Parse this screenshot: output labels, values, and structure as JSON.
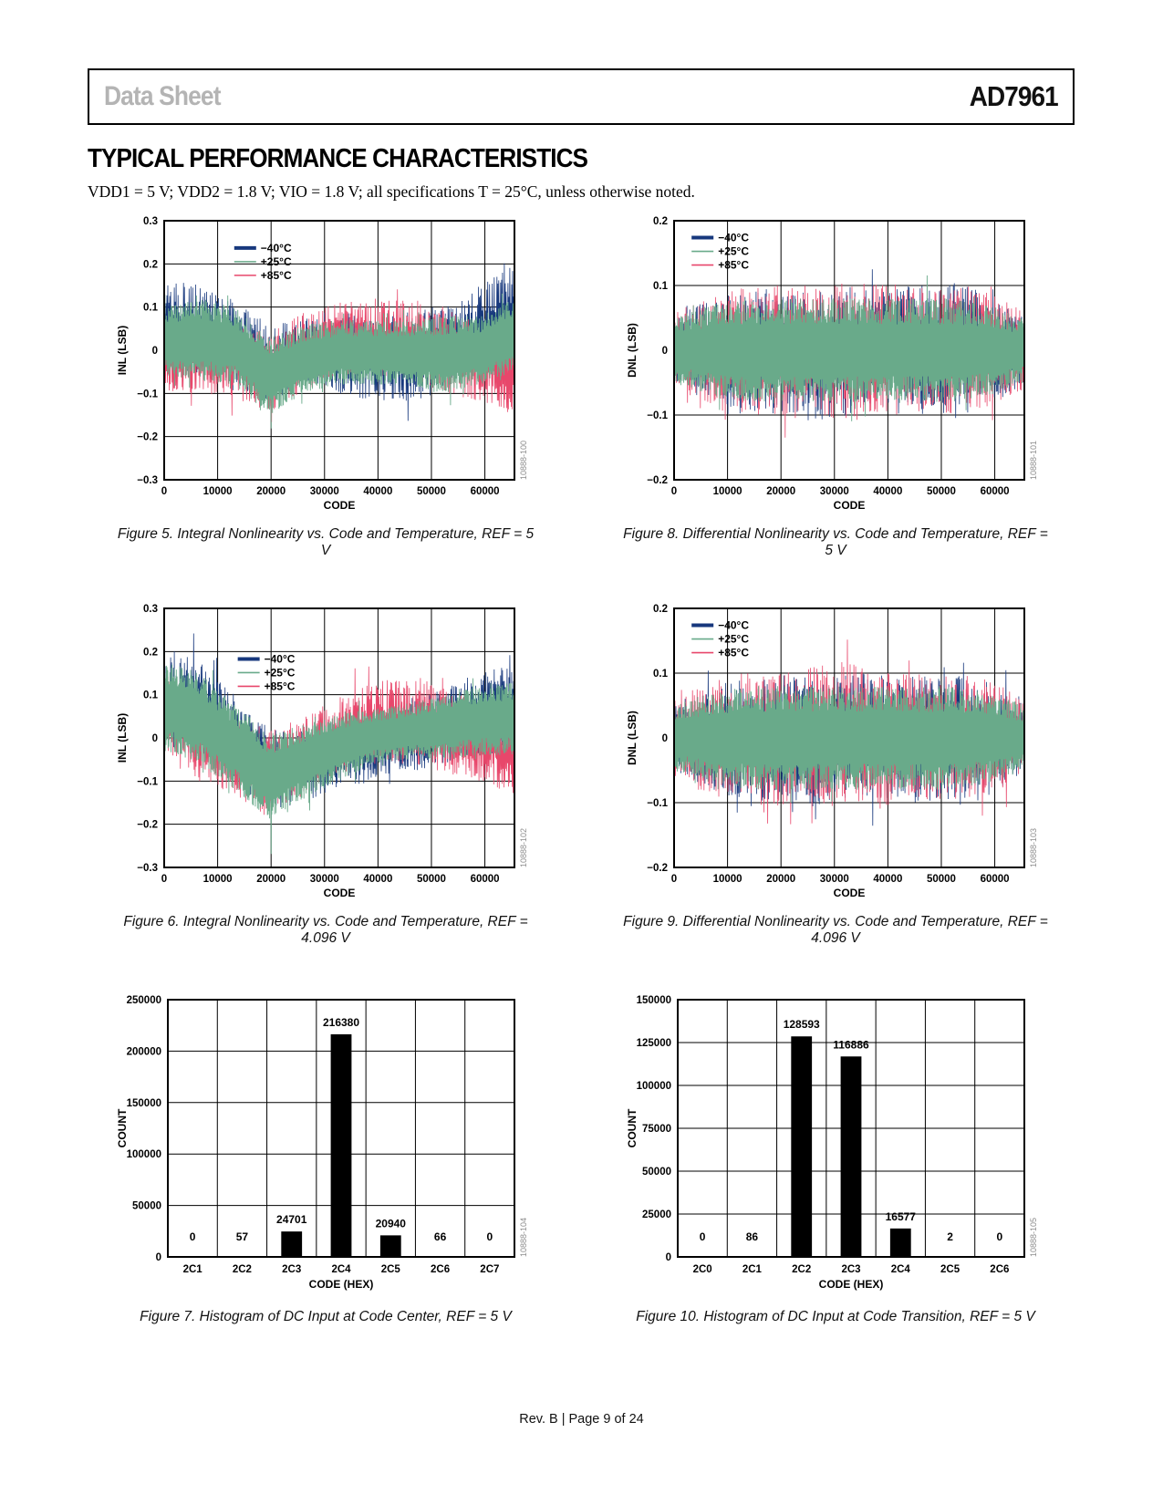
{
  "page": {
    "header_left": "Data Sheet",
    "header_right": "AD7961",
    "title": "TYPICAL PERFORMANCE CHARACTERISTICS",
    "subtitle": "VDD1 = 5 V; VDD2 = 1.8 V; VIO = 1.8 V; all specifications T = 25°C, unless otherwise noted.",
    "footer": "Rev. B | Page 9 of 24"
  },
  "colors": {
    "navy": "#17387d",
    "green": "#69aa8a",
    "crimson": "#e8476b",
    "bar": "#000000",
    "watermark": "#8c8c8c",
    "grid": "#000000"
  },
  "chart_data": [
    {
      "id": "inl-5v",
      "type": "line",
      "title": "",
      "caption": "Figure 5. Integral Nonlinearity vs. Code and Temperature, REF = 5 V",
      "xlabel": "CODE",
      "ylabel": "INL (LSB)",
      "xlim": [
        0,
        65536
      ],
      "ylim": [
        -0.3,
        0.3
      ],
      "xticks": [
        0,
        10000,
        20000,
        30000,
        40000,
        50000,
        60000
      ],
      "xtick_labels": [
        "0",
        "10000",
        "20000",
        "30000",
        "40000",
        "50000",
        "60000"
      ],
      "yticks": [
        -0.3,
        -0.2,
        -0.1,
        0,
        0.1,
        0.2,
        0.3
      ],
      "ytick_labels": [
        "−0.3",
        "−0.2",
        "−0.1",
        "0",
        "0.1",
        "0.2",
        "0.3"
      ],
      "grid": true,
      "legend_position": "inside-top-left-offset",
      "legend_xy": [
        0.2,
        0.07
      ],
      "watermark": "10888-100",
      "series": [
        {
          "name": "−40°C",
          "color": "navy",
          "seed": 11,
          "line_width": 0.8,
          "upper": [
            0.17,
            0.15,
            0.12,
            0.05,
            0.08,
            0.08,
            0.08,
            0.09,
            0.1,
            0.15,
            0.2
          ],
          "lower": [
            -0.05,
            -0.06,
            -0.08,
            -0.12,
            -0.08,
            -0.1,
            -0.12,
            -0.13,
            -0.1,
            -0.06,
            -0.02
          ]
        },
        {
          "name": "+85°C",
          "color": "crimson",
          "seed": 13,
          "line_width": 0.8,
          "upper": [
            0.05,
            0.06,
            0.07,
            0.04,
            0.09,
            0.11,
            0.12,
            0.12,
            0.1,
            0.06,
            0.05
          ],
          "lower": [
            -0.1,
            -0.1,
            -0.11,
            -0.15,
            -0.1,
            -0.06,
            -0.06,
            -0.06,
            -0.1,
            -0.12,
            -0.15
          ]
        },
        {
          "name": "+25°C",
          "color": "green",
          "seed": 12,
          "line_width": 0.9,
          "upper": [
            0.1,
            0.12,
            0.1,
            0.03,
            0.06,
            0.07,
            0.07,
            0.07,
            0.08,
            0.08,
            0.12
          ],
          "lower": [
            -0.06,
            -0.07,
            -0.08,
            -0.15,
            -0.1,
            -0.08,
            -0.08,
            -0.08,
            -0.1,
            -0.08,
            -0.05
          ]
        }
      ],
      "legend_order": [
        "−40°C",
        "+25°C",
        "+85°C"
      ]
    },
    {
      "id": "dnl-5v",
      "type": "line",
      "title": "",
      "caption": "Figure 8. Differential Nonlinearity vs. Code and Temperature, REF = 5 V",
      "xlabel": "CODE",
      "ylabel": "DNL (LSB)",
      "xlim": [
        0,
        65536
      ],
      "ylim": [
        -0.2,
        0.2
      ],
      "xticks": [
        0,
        10000,
        20000,
        30000,
        40000,
        50000,
        60000
      ],
      "xtick_labels": [
        "0",
        "10000",
        "20000",
        "30000",
        "40000",
        "50000",
        "60000"
      ],
      "yticks": [
        -0.2,
        -0.1,
        0,
        0.1,
        0.2
      ],
      "ytick_labels": [
        "−0.2",
        "−0.1",
        "0",
        "0.1",
        "0.2"
      ],
      "grid": true,
      "legend_position": "inside-top-left",
      "legend_xy": [
        0.05,
        0.03
      ],
      "watermark": "10888-101",
      "series": [
        {
          "name": "−40°C",
          "color": "navy",
          "seed": 21,
          "line_width": 0.8,
          "upper": [
            0.05,
            0.08,
            0.09,
            0.1,
            0.09,
            0.1,
            0.1,
            0.1,
            0.11,
            0.09,
            0.05
          ],
          "lower": [
            -0.05,
            -0.08,
            -0.1,
            -0.1,
            -0.11,
            -0.1,
            -0.1,
            -0.1,
            -0.1,
            -0.09,
            -0.05
          ]
        },
        {
          "name": "+85°C",
          "color": "crimson",
          "seed": 23,
          "line_width": 0.8,
          "upper": [
            0.06,
            0.08,
            0.1,
            0.1,
            0.1,
            0.11,
            0.1,
            0.1,
            0.1,
            0.09,
            0.06
          ],
          "lower": [
            -0.06,
            -0.09,
            -0.1,
            -0.11,
            -0.1,
            -0.11,
            -0.1,
            -0.1,
            -0.1,
            -0.09,
            -0.06
          ]
        },
        {
          "name": "+25°C",
          "color": "green",
          "seed": 22,
          "line_width": 0.9,
          "upper": [
            0.05,
            0.07,
            0.08,
            0.08,
            0.08,
            0.08,
            0.08,
            0.08,
            0.08,
            0.07,
            0.05
          ],
          "lower": [
            -0.05,
            -0.07,
            -0.08,
            -0.08,
            -0.08,
            -0.08,
            -0.08,
            -0.08,
            -0.08,
            -0.07,
            -0.05
          ]
        }
      ],
      "legend_order": [
        "−40°C",
        "+25°C",
        "+85°C"
      ]
    },
    {
      "id": "inl-4v096",
      "type": "line",
      "title": "",
      "caption": "Figure 6. Integral Nonlinearity vs. Code and Temperature, REF = 4.096 V",
      "xlabel": "CODE",
      "ylabel": "INL (LSB)",
      "xlim": [
        0,
        65536
      ],
      "ylim": [
        -0.3,
        0.3
      ],
      "xticks": [
        0,
        10000,
        20000,
        30000,
        40000,
        50000,
        60000
      ],
      "xtick_labels": [
        "0",
        "10000",
        "20000",
        "30000",
        "40000",
        "50000",
        "60000"
      ],
      "yticks": [
        -0.3,
        -0.2,
        -0.1,
        0,
        0.1,
        0.2,
        0.3
      ],
      "ytick_labels": [
        "−0.3",
        "−0.2",
        "−0.1",
        "0",
        "0.1",
        "0.2",
        "0.3"
      ],
      "grid": true,
      "legend_position": "inside-upper-left-offset",
      "legend_xy": [
        0.21,
        0.16
      ],
      "watermark": "10888-102",
      "series": [
        {
          "name": "−40°C",
          "color": "navy",
          "seed": 31,
          "line_width": 0.8,
          "upper": [
            0.21,
            0.18,
            0.1,
            0.02,
            0.02,
            0.05,
            0.06,
            0.08,
            0.12,
            0.15,
            0.2
          ],
          "lower": [
            -0.02,
            -0.05,
            -0.1,
            -0.17,
            -0.15,
            -0.12,
            -0.1,
            -0.08,
            -0.06,
            -0.05,
            -0.03
          ]
        },
        {
          "name": "+85°C",
          "color": "crimson",
          "seed": 33,
          "line_width": 0.8,
          "upper": [
            0.16,
            0.1,
            0.05,
            0.02,
            0.05,
            0.1,
            0.13,
            0.15,
            0.12,
            0.08,
            0.06
          ],
          "lower": [
            -0.05,
            -0.1,
            -0.13,
            -0.19,
            -0.13,
            -0.08,
            -0.06,
            -0.06,
            -0.08,
            -0.1,
            -0.13
          ]
        },
        {
          "name": "+25°C",
          "color": "green",
          "seed": 32,
          "line_width": 0.9,
          "upper": [
            0.18,
            0.15,
            0.08,
            0.01,
            0.03,
            0.06,
            0.07,
            0.08,
            0.1,
            0.12,
            0.13
          ],
          "lower": [
            -0.03,
            -0.06,
            -0.12,
            -0.19,
            -0.14,
            -0.1,
            -0.06,
            -0.05,
            -0.05,
            -0.04,
            -0.04
          ]
        }
      ],
      "legend_order": [
        "−40°C",
        "+25°C",
        "+85°C"
      ]
    },
    {
      "id": "dnl-4v096",
      "type": "line",
      "title": "",
      "caption": "Figure 9. Differential Nonlinearity vs. Code and Temperature, REF = 4.096 V",
      "xlabel": "CODE",
      "ylabel": "DNL (LSB)",
      "xlim": [
        0,
        65536
      ],
      "ylim": [
        -0.2,
        0.2
      ],
      "xticks": [
        0,
        10000,
        20000,
        30000,
        40000,
        50000,
        60000
      ],
      "xtick_labels": [
        "0",
        "10000",
        "20000",
        "30000",
        "40000",
        "50000",
        "60000"
      ],
      "yticks": [
        -0.2,
        -0.1,
        0,
        0.1,
        0.2
      ],
      "ytick_labels": [
        "−0.2",
        "−0.1",
        "0",
        "0.1",
        "0.2"
      ],
      "grid": true,
      "legend_position": "inside-top-left",
      "legend_xy": [
        0.05,
        0.03
      ],
      "watermark": "10888-103",
      "series": [
        {
          "name": "−40°C",
          "color": "navy",
          "seed": 41,
          "line_width": 0.8,
          "upper": [
            0.05,
            0.08,
            0.09,
            0.1,
            0.1,
            0.1,
            0.1,
            0.1,
            0.1,
            0.09,
            0.06
          ],
          "lower": [
            -0.05,
            -0.08,
            -0.1,
            -0.1,
            -0.11,
            -0.1,
            -0.1,
            -0.1,
            -0.1,
            -0.09,
            -0.05
          ]
        },
        {
          "name": "+85°C",
          "color": "crimson",
          "seed": 43,
          "line_width": 0.8,
          "upper": [
            0.06,
            0.09,
            0.1,
            0.1,
            0.11,
            0.12,
            0.1,
            0.1,
            0.1,
            0.09,
            0.06
          ],
          "lower": [
            -0.06,
            -0.09,
            -0.1,
            -0.11,
            -0.1,
            -0.11,
            -0.11,
            -0.1,
            -0.1,
            -0.09,
            -0.06
          ]
        },
        {
          "name": "+25°C",
          "color": "green",
          "seed": 42,
          "line_width": 0.9,
          "upper": [
            0.05,
            0.07,
            0.08,
            0.08,
            0.08,
            0.08,
            0.08,
            0.08,
            0.08,
            0.07,
            0.05
          ],
          "lower": [
            -0.05,
            -0.07,
            -0.08,
            -0.08,
            -0.08,
            -0.08,
            -0.08,
            -0.08,
            -0.08,
            -0.07,
            -0.05
          ]
        }
      ],
      "legend_order": [
        "−40°C",
        "+25°C",
        "+85°C"
      ]
    },
    {
      "id": "histogram-code-center",
      "type": "bar",
      "title": "",
      "caption": "Figure 7. Histogram of DC Input at Code Center, REF = 5 V",
      "xlabel": "CODE (HEX)",
      "ylabel": "COUNT",
      "categories": [
        "2C1",
        "2C2",
        "2C3",
        "2C4",
        "2C5",
        "2C6",
        "2C7"
      ],
      "values": [
        0,
        57,
        24701,
        216380,
        20940,
        66,
        0
      ],
      "value_labels": [
        "0",
        "57",
        "24701",
        "216380",
        "20940",
        "66",
        "0"
      ],
      "ylim": [
        0,
        250000
      ],
      "yticks": [
        0,
        50000,
        100000,
        150000,
        200000,
        250000
      ],
      "ytick_labels": [
        "0",
        "50000",
        "100000",
        "150000",
        "200000",
        "250000"
      ],
      "grid": true,
      "legend_position": "none",
      "watermark": "10888-104"
    },
    {
      "id": "histogram-code-transition",
      "type": "bar",
      "title": "",
      "caption": "Figure 10. Histogram of DC Input at Code Transition, REF = 5 V",
      "xlabel": "CODE (HEX)",
      "ylabel": "COUNT",
      "categories": [
        "2C0",
        "2C1",
        "2C2",
        "2C3",
        "2C4",
        "2C5",
        "2C6"
      ],
      "values": [
        0,
        86,
        128593,
        116886,
        16577,
        2,
        0
      ],
      "value_labels": [
        "0",
        "86",
        "128593",
        "116886",
        "16577",
        "2",
        "0"
      ],
      "ylim": [
        0,
        150000
      ],
      "yticks": [
        0,
        25000,
        50000,
        75000,
        100000,
        125000,
        150000
      ],
      "ytick_labels": [
        "0",
        "25000",
        "50000",
        "75000",
        "100000",
        "125000",
        "150000"
      ],
      "grid": true,
      "legend_position": "none",
      "watermark": "10888-105"
    }
  ]
}
